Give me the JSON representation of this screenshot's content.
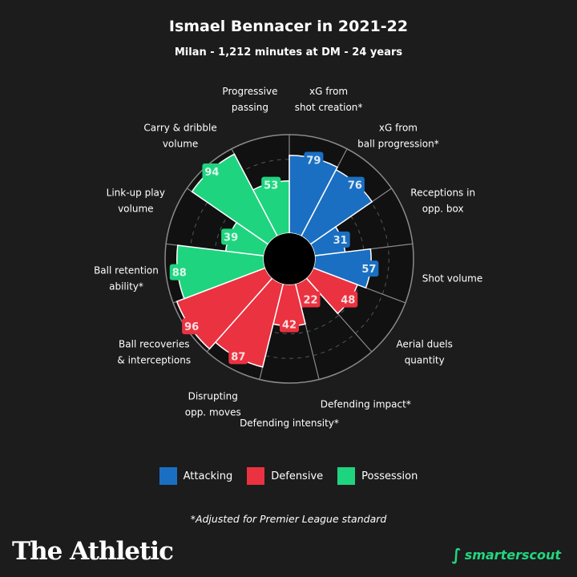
{
  "title": "Ismael Bennacer in 2021-22",
  "subtitle": "Milan - 1,212 minutes at DM - 24 years",
  "chart_data": {
    "type": "polar-bar",
    "range": [
      0,
      100
    ],
    "grid": true,
    "categories": [
      {
        "label": [
          "xG from",
          "shot creation*"
        ],
        "value": 79,
        "group": "Attacking"
      },
      {
        "label": [
          "xG from",
          "ball progression*"
        ],
        "value": 76,
        "group": "Attacking"
      },
      {
        "label": [
          "Receptions in",
          "opp. box"
        ],
        "value": 31,
        "group": "Attacking"
      },
      {
        "label": [
          "Shot volume"
        ],
        "value": 57,
        "group": "Attacking"
      },
      {
        "label": [
          "Aerial duels",
          "quantity"
        ],
        "value": 48,
        "group": "Defensive"
      },
      {
        "label": [
          "Defending impact*"
        ],
        "value": 22,
        "group": "Defensive"
      },
      {
        "label": [
          "Defending intensity*"
        ],
        "value": 42,
        "group": "Defensive"
      },
      {
        "label": [
          "Disrupting",
          "opp. moves"
        ],
        "value": 87,
        "group": "Defensive"
      },
      {
        "label": [
          "Ball recoveries",
          "& interceptions"
        ],
        "value": 96,
        "group": "Defensive"
      },
      {
        "label": [
          "Ball retention",
          "ability*"
        ],
        "value": 88,
        "group": "Possession"
      },
      {
        "label": [
          "Link-up play",
          "volume"
        ],
        "value": 39,
        "group": "Possession"
      },
      {
        "label": [
          "Carry & dribble",
          "volume"
        ],
        "value": 94,
        "group": "Possession"
      },
      {
        "label": [
          "Progressive",
          "passing"
        ],
        "value": 53,
        "group": "Possession"
      }
    ],
    "legend": [
      {
        "name": "Attacking",
        "color": "#1a6fc2"
      },
      {
        "name": "Defensive",
        "color": "#ea3240"
      },
      {
        "name": "Possession",
        "color": "#1fd47f"
      }
    ],
    "legend_position": "bottom"
  },
  "footnote": "*Adjusted for Premier League standard",
  "brand": "The Athletic",
  "partner": "smarterscout"
}
